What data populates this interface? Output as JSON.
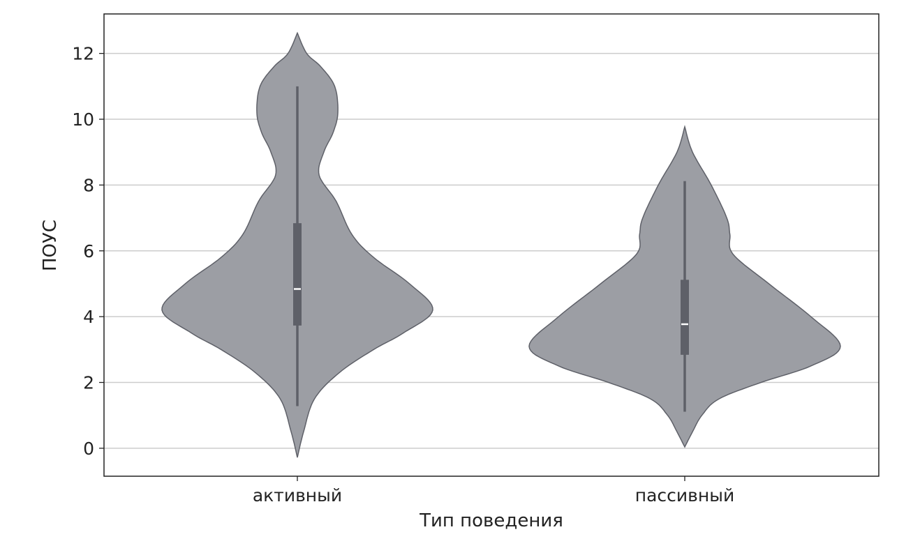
{
  "chart_data": {
    "type": "violin",
    "title": "",
    "xlabel": "Тип поведения",
    "ylabel": "ПОУС",
    "ylim": [
      -0.85,
      13.2
    ],
    "yticks": [
      0,
      2,
      4,
      6,
      8,
      10,
      12
    ],
    "grid": "horizontal",
    "colors": {
      "fill": "#9c9ea4",
      "edge": "#5e6068",
      "box": "#5e6068",
      "median": "#ffffff",
      "grid": "#cccccc"
    },
    "categories": [
      "активный",
      "пассивный"
    ],
    "violins": [
      {
        "category": "активный",
        "min": -0.28,
        "max": 12.62,
        "whisker_low": 1.28,
        "whisker_high": 11.0,
        "q1": 3.73,
        "median": 4.84,
        "q3": 6.84,
        "density": [
          [
            -0.28,
            0
          ],
          [
            0.5,
            0.04
          ],
          [
            1.5,
            0.11
          ],
          [
            2.3,
            0.27
          ],
          [
            3,
            0.49
          ],
          [
            3.5,
            0.68
          ],
          [
            4.2,
            0.87
          ],
          [
            5,
            0.72
          ],
          [
            5.8,
            0.49
          ],
          [
            6.5,
            0.35
          ],
          [
            7.5,
            0.25
          ],
          [
            8.3,
            0.14
          ],
          [
            9,
            0.17
          ],
          [
            9.6,
            0.23
          ],
          [
            10.2,
            0.26
          ],
          [
            11,
            0.24
          ],
          [
            11.6,
            0.15
          ],
          [
            12,
            0.06
          ],
          [
            12.62,
            0
          ]
        ]
      },
      {
        "category": "пассивный",
        "min": 0.04,
        "max": 9.77,
        "whisker_low": 1.11,
        "whisker_high": 8.12,
        "q1": 2.84,
        "median": 3.77,
        "q3": 5.12,
        "density": [
          [
            0.04,
            0
          ],
          [
            0.5,
            0.05
          ],
          [
            1,
            0.11
          ],
          [
            1.5,
            0.22
          ],
          [
            2,
            0.49
          ],
          [
            2.5,
            0.81
          ],
          [
            3.1,
            1.0
          ],
          [
            4,
            0.81
          ],
          [
            5,
            0.54
          ],
          [
            5.9,
            0.31
          ],
          [
            6.5,
            0.29
          ],
          [
            7,
            0.27
          ],
          [
            8,
            0.17
          ],
          [
            9,
            0.05
          ],
          [
            9.77,
            0
          ]
        ]
      }
    ]
  }
}
